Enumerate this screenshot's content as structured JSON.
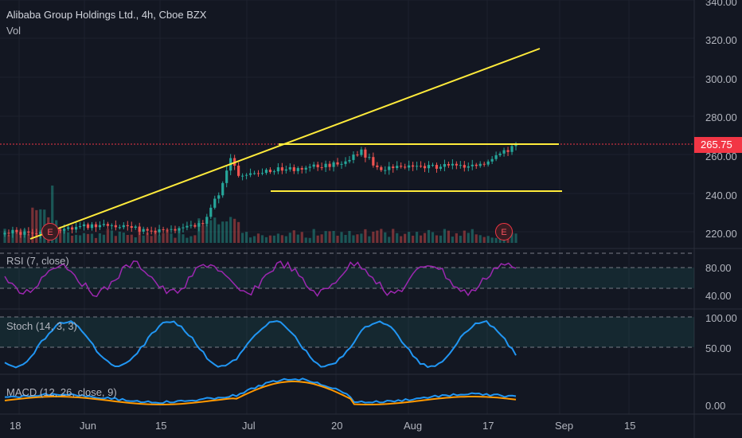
{
  "header": {
    "title": "Alibaba Group Holdings Ltd., 4h, Cboe BZX",
    "volume_label": "Vol"
  },
  "main_pane": {
    "price_axis": [
      "340.00",
      "320.00",
      "300.00",
      "280.00",
      "260.00",
      "240.00",
      "220.00"
    ],
    "last_price": "265.75",
    "earnings_marker": "E"
  },
  "rsi_pane": {
    "label": "RSI (7, close)",
    "axis": [
      "80.00",
      "40.00"
    ]
  },
  "stoch_pane": {
    "label": "Stoch (14, 3, 3)",
    "axis": [
      "100.00",
      "50.00"
    ]
  },
  "macd_pane": {
    "label": "MACD (12, 26, close, 9)",
    "axis": [
      "0.00"
    ]
  },
  "time_axis": [
    "18",
    "Jun",
    "15",
    "Jul",
    "20",
    "Aug",
    "17",
    "Sep",
    "15"
  ],
  "colors": {
    "background": "#131722",
    "up": "#26a69a",
    "down": "#ef5350",
    "trendline": "#ffeb3b",
    "rsi": "#9c27b0",
    "stoch": "#2196f3",
    "macd_signal": "#ff9800",
    "price_tag": "#f23645"
  }
}
